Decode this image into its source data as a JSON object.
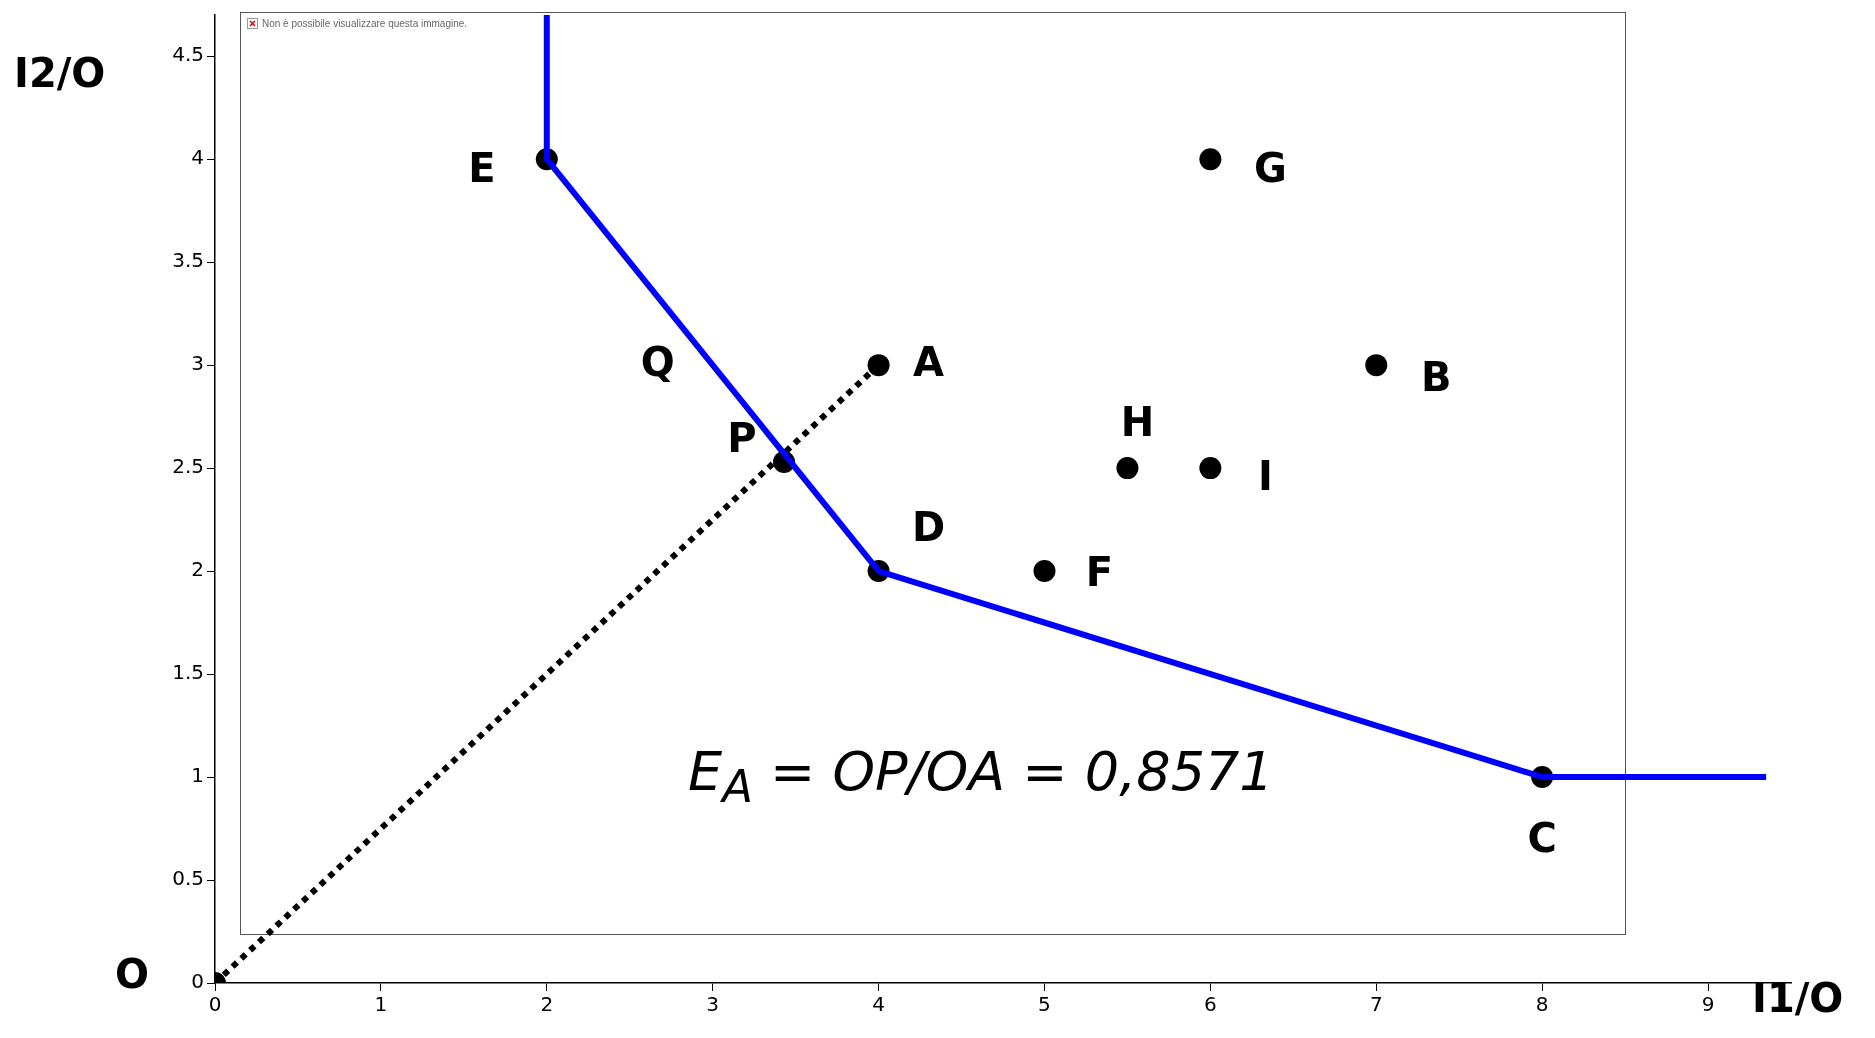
{
  "chart_data": {
    "type": "scatter",
    "xlabel": "I1/O",
    "ylabel": "I2/O",
    "xlim": [
      0,
      9.5
    ],
    "ylim": [
      0,
      4.7
    ],
    "xticks": [
      0,
      1,
      2,
      3,
      4,
      5,
      6,
      7,
      8,
      9
    ],
    "yticks": [
      0,
      0.5,
      1,
      1.5,
      2,
      2.5,
      3,
      3.5,
      4,
      {
        "value": 4.5,
        "label": "4.5"
      }
    ],
    "grid": false,
    "legend": false,
    "marker": "circle",
    "series": [
      {
        "type": "line",
        "name": "Q",
        "color": "#0000ff",
        "x": [
          2,
          2,
          4,
          8,
          9.35
        ],
        "values": [
          4.7,
          4,
          2,
          1,
          1
        ],
        "marker": "none",
        "line_style": "solid"
      },
      {
        "type": "line",
        "color": "#000000",
        "x": [
          0,
          4
        ],
        "values": [
          0,
          3
        ],
        "marker": "none",
        "line_style": "dotted"
      },
      {
        "name": "A",
        "color": "#000000",
        "x": [
          4
        ],
        "values": [
          3
        ]
      },
      {
        "name": "B",
        "color": "#000000",
        "x": [
          7
        ],
        "values": [
          3
        ]
      },
      {
        "name": "C",
        "color": "#000000",
        "x": [
          8
        ],
        "values": [
          1
        ]
      },
      {
        "name": "D",
        "color": "#000000",
        "x": [
          4
        ],
        "values": [
          2
        ]
      },
      {
        "name": "E",
        "color": "#000000",
        "x": [
          2
        ],
        "values": [
          4
        ]
      },
      {
        "name": "F",
        "color": "#000000",
        "x": [
          5
        ],
        "values": [
          2
        ]
      },
      {
        "name": "G",
        "color": "#000000",
        "x": [
          6
        ],
        "values": [
          4
        ]
      },
      {
        "name": "H",
        "color": "#000000",
        "x": [
          5.5
        ],
        "values": [
          2.5
        ]
      },
      {
        "name": "I",
        "color": "#000000",
        "x": [
          6
        ],
        "values": [
          2.5
        ]
      },
      {
        "name": "O",
        "color": "#000000",
        "x": [
          0
        ],
        "values": [
          0
        ]
      },
      {
        "name": "P",
        "color": "#000000",
        "x": [
          3.43
        ],
        "values": [
          2.53
        ]
      }
    ],
    "annotations": [
      "Non è possibile visualizzare questa immagine.",
      "E$_{A}$ = OP/OA = 0,8571"
    ]
  }
}
